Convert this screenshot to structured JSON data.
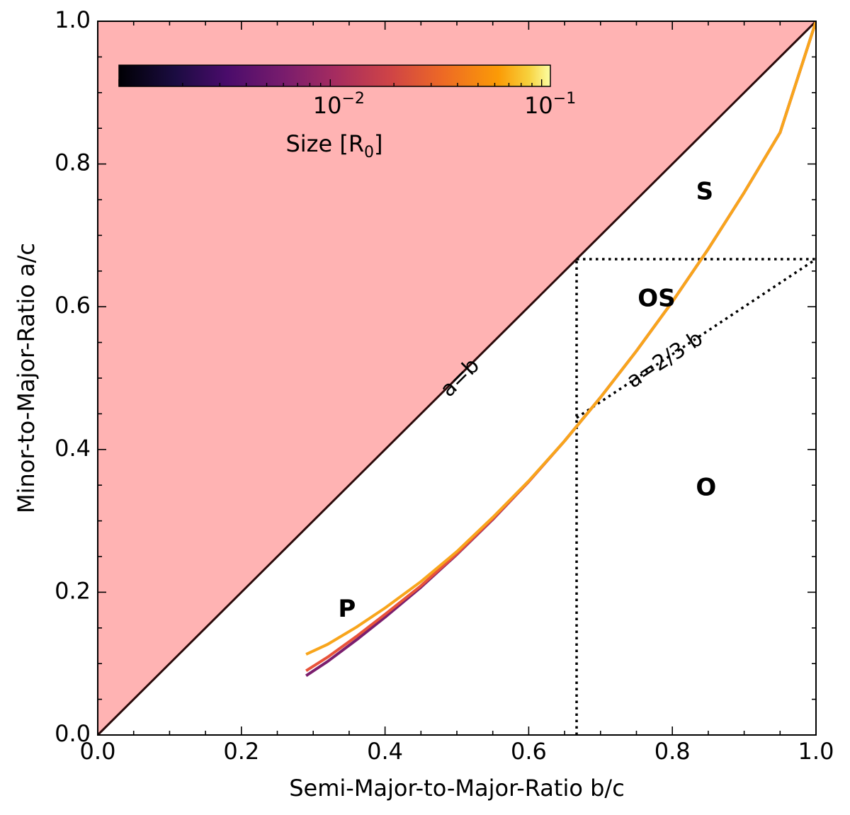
{
  "chart_data": {
    "type": "line",
    "xlabel": "Semi-Major-to-Major-Ratio b/c",
    "ylabel": "Minor-to-Major-Ratio a/c",
    "xlim": [
      0,
      1
    ],
    "ylim": [
      0,
      1
    ],
    "x_ticks": [
      0.0,
      0.2,
      0.4,
      0.6,
      0.8,
      1.0
    ],
    "y_ticks": [
      0.0,
      0.2,
      0.4,
      0.6,
      0.8,
      1.0
    ],
    "x_tick_labels": [
      "0.0",
      "0.2",
      "0.4",
      "0.6",
      "0.8",
      "1.0"
    ],
    "y_tick_labels": [
      "0.0",
      "0.2",
      "0.4",
      "0.6",
      "0.8",
      "1.0"
    ],
    "forbidden_region": {
      "description": "a > b",
      "color": "#ffb3b3"
    },
    "reference_lines": [
      {
        "name": "a=b",
        "label": "a=b",
        "points": [
          [
            0,
            0
          ],
          [
            1,
            1
          ]
        ],
        "style": "solid",
        "color": "#2a0a0a"
      },
      {
        "name": "vertical b=2/3",
        "points": [
          [
            0.6667,
            0
          ],
          [
            0.6667,
            0.6667
          ]
        ],
        "style": "dotted",
        "color": "#000000"
      },
      {
        "name": "horizontal a=2/3",
        "points": [
          [
            0.6667,
            0.6667
          ],
          [
            1.0,
            0.6667
          ]
        ],
        "style": "dotted",
        "color": "#000000"
      },
      {
        "name": "a=2/3 b",
        "label": "a=2/3 b",
        "points": [
          [
            0.6667,
            0.4444
          ],
          [
            1.0,
            0.6667
          ]
        ],
        "style": "dotted",
        "color": "#000000"
      }
    ],
    "series": [
      {
        "name": "small size",
        "color": "#7a1e6e",
        "x": [
          0.29,
          0.32,
          0.36,
          0.4,
          0.45,
          0.5,
          0.55,
          0.6,
          0.65,
          0.7,
          0.75,
          0.8,
          0.85,
          0.9,
          0.95,
          1.0
        ],
        "y": [
          0.083,
          0.103,
          0.133,
          0.165,
          0.207,
          0.253,
          0.302,
          0.355,
          0.412,
          0.473,
          0.538,
          0.607,
          0.681,
          0.76,
          0.844,
          1.0
        ]
      },
      {
        "name": "medium size",
        "color": "#e8533a",
        "x": [
          0.29,
          0.32,
          0.36,
          0.4,
          0.45,
          0.5,
          0.55,
          0.6,
          0.65,
          0.7,
          0.75,
          0.8,
          0.85,
          0.9,
          0.95,
          1.0
        ],
        "y": [
          0.09,
          0.109,
          0.138,
          0.169,
          0.209,
          0.254,
          0.303,
          0.355,
          0.412,
          0.473,
          0.538,
          0.607,
          0.681,
          0.76,
          0.844,
          1.0
        ]
      },
      {
        "name": "large size",
        "color": "#f8a51c",
        "x": [
          0.29,
          0.32,
          0.36,
          0.4,
          0.45,
          0.5,
          0.55,
          0.6,
          0.65,
          0.7,
          0.75,
          0.8,
          0.85,
          0.9,
          0.95,
          1.0
        ],
        "y": [
          0.113,
          0.127,
          0.151,
          0.178,
          0.215,
          0.257,
          0.305,
          0.356,
          0.412,
          0.473,
          0.538,
          0.607,
          0.681,
          0.76,
          0.844,
          1.0
        ]
      }
    ],
    "region_labels": [
      {
        "text": "S",
        "x": 0.845,
        "y": 0.76
      },
      {
        "text": "OS",
        "x": 0.778,
        "y": 0.61
      },
      {
        "text": "O",
        "x": 0.847,
        "y": 0.345
      },
      {
        "text": "P",
        "x": 0.347,
        "y": 0.175
      }
    ],
    "line_labels": [
      {
        "text": "a=b",
        "x": 0.505,
        "y": 0.5,
        "angle_deg": -45
      },
      {
        "text": "a=2/3 b",
        "x": 0.79,
        "y": 0.525,
        "angle_deg": -33
      }
    ],
    "colorbar": {
      "label_main": "Size [R",
      "label_sub": "0",
      "label_end": "]",
      "scale": "log",
      "range": [
        0.001,
        0.11
      ],
      "colormap": "inferno",
      "placement": "top-left",
      "ticks": [
        {
          "value": 0.01,
          "base": "10",
          "exponent": "−2"
        },
        {
          "value": 0.1,
          "base": "10",
          "exponent": "−1"
        }
      ]
    }
  }
}
